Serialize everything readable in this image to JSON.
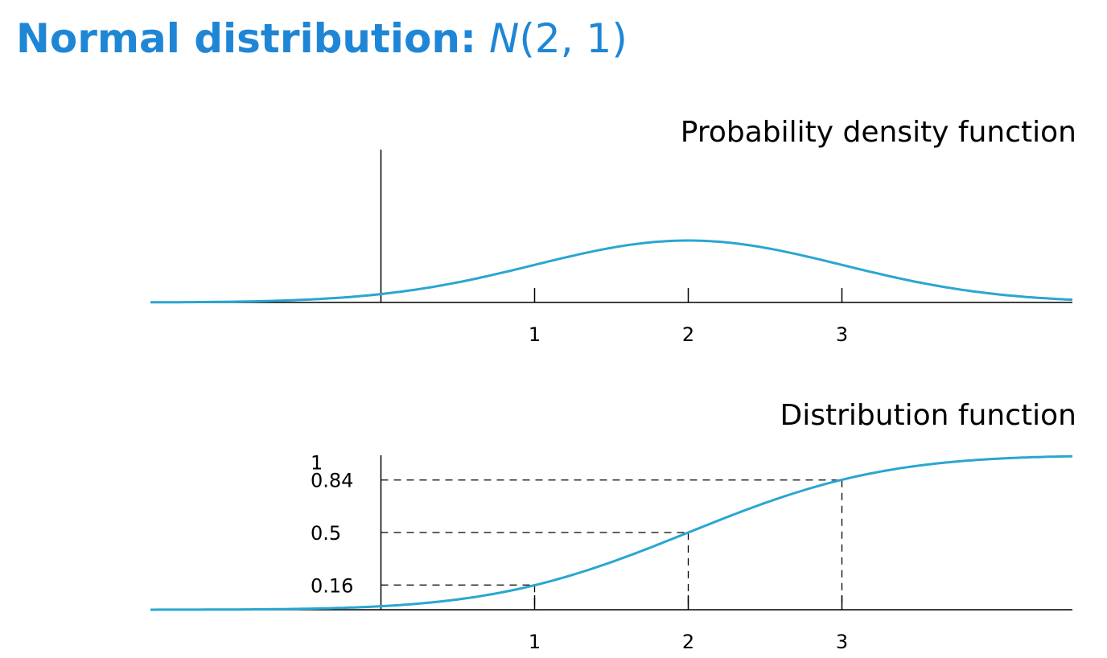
{
  "page": {
    "title_lead": "Normal distribution:",
    "title_symbol": "N",
    "title_args": "(2, 1)"
  },
  "colors": {
    "heading": "#1f86d6",
    "curve": "#2aa6d1",
    "axis": "#000000"
  },
  "chart_data": [
    {
      "type": "line",
      "title": "Probability density function",
      "xlabel": "",
      "ylabel": "",
      "xlim": [
        -1.5,
        4.5
      ],
      "ylim": [
        0,
        0.4
      ],
      "x_ticks": [
        1,
        2,
        3
      ],
      "x_tick_labels": [
        "1",
        "2",
        "3"
      ],
      "y_axis_at_x": 0,
      "grid": false,
      "series": [
        {
          "function": "normal_pdf",
          "mean": 2,
          "sd": 1,
          "x": [
            -1.5,
            -1,
            -0.5,
            0,
            0.5,
            1,
            1.5,
            2,
            2.5,
            3,
            3.5,
            4,
            4.5
          ],
          "y": [
            0.0009,
            0.0044,
            0.0175,
            0.054,
            0.1295,
            0.242,
            0.3521,
            0.3989,
            0.3521,
            0.242,
            0.1295,
            0.054,
            0.0175
          ]
        }
      ]
    },
    {
      "type": "line",
      "title": "Distribution function",
      "xlabel": "",
      "ylabel": "",
      "xlim": [
        -1.5,
        4.5
      ],
      "ylim": [
        0,
        1
      ],
      "x_ticks": [
        1,
        2,
        3
      ],
      "x_tick_labels": [
        "1",
        "2",
        "3"
      ],
      "y_ticks": [
        0.16,
        0.5,
        0.84,
        1
      ],
      "y_tick_labels": [
        "0.16",
        "0.5",
        "0.84",
        "1"
      ],
      "y_axis_at_x": 0,
      "grid": false,
      "guides": [
        {
          "x": 1,
          "y": 0.16
        },
        {
          "x": 2,
          "y": 0.5
        },
        {
          "x": 3,
          "y": 0.84
        }
      ],
      "series": [
        {
          "function": "normal_cdf",
          "mean": 2,
          "sd": 1,
          "x": [
            -1.5,
            -1,
            -0.5,
            0,
            0.5,
            1,
            1.5,
            2,
            2.5,
            3,
            3.5,
            4,
            4.5
          ],
          "y": [
            0.0002,
            0.0013,
            0.0062,
            0.0228,
            0.0668,
            0.1587,
            0.3085,
            0.5,
            0.6915,
            0.8413,
            0.9332,
            0.9772,
            0.9938
          ]
        }
      ]
    }
  ]
}
